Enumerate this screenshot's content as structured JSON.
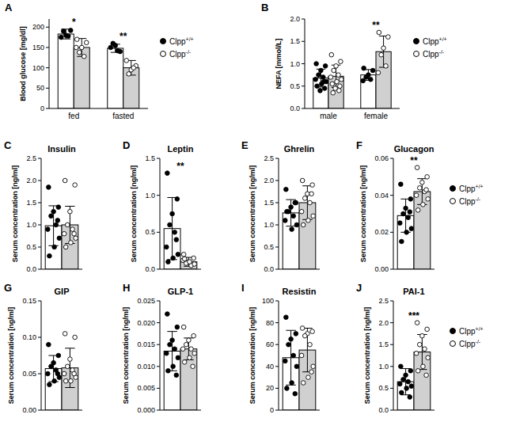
{
  "chart_data": [
    {
      "type": "bar",
      "panel_label": "A",
      "y_label": "Blood glucose [mg/dl]",
      "categories": [
        "fed",
        "fasted"
      ],
      "ylim": [
        0,
        220
      ],
      "yticks": [
        0,
        50,
        100,
        150,
        200
      ],
      "grid": false,
      "legend": "right",
      "series": [
        {
          "name": "Clpp+/+",
          "color": "#ffffff",
          "marker": "filled",
          "values": [
            183,
            148
          ],
          "errors": [
            12,
            10
          ],
          "points": [
            [
              175,
              192,
              180,
              190,
              178
            ],
            [
              150,
              140,
              155,
              160,
              142
            ]
          ]
        },
        {
          "name": "Clpp-/-",
          "color": "#d0d0d0",
          "marker": "open",
          "values": [
            150,
            100
          ],
          "errors": [
            22,
            18
          ],
          "points": [
            [
              170,
              162,
              150,
              138,
              128,
              150
            ],
            [
              118,
              105,
              95,
              85,
              100
            ]
          ]
        }
      ],
      "annotations": [
        {
          "text": "*",
          "category": 0
        },
        {
          "text": "**",
          "category": 1
        }
      ]
    },
    {
      "type": "bar",
      "panel_label": "B",
      "y_label": "NEFA [mmol/L]",
      "categories": [
        "male",
        "female"
      ],
      "ylim": [
        0,
        2.0
      ],
      "yticks": [
        {
          "value": 0,
          "label": "0.0"
        },
        0.5,
        {
          "value": 1,
          "label": "1.0"
        },
        1.5,
        {
          "value": 2,
          "label": "2.0"
        }
      ],
      "grid": false,
      "legend": "right",
      "series": [
        {
          "name": "Clpp+/+",
          "color": "#ffffff",
          "marker": "filled",
          "values": [
            0.68,
            0.75
          ],
          "errors": [
            0.2,
            0.12
          ],
          "points": [
            [
              1.0,
              0.95,
              0.85,
              0.75,
              0.7,
              0.65,
              0.6,
              0.55,
              0.5,
              0.45,
              0.4,
              0.6
            ],
            [
              0.9,
              0.85,
              0.75,
              0.7,
              0.65,
              0.62
            ]
          ]
        },
        {
          "name": "Clpp-/-",
          "color": "#d0d0d0",
          "marker": "open",
          "values": [
            0.72,
            1.27
          ],
          "errors": [
            0.25,
            0.35
          ],
          "points": [
            [
              1.2,
              1.05,
              0.95,
              0.85,
              0.75,
              0.7,
              0.65,
              0.6,
              0.55,
              0.5,
              0.45,
              0.4,
              0.35
            ],
            [
              1.7,
              1.6,
              1.35,
              1.2,
              0.95,
              0.8
            ]
          ]
        }
      ],
      "annotations": [
        {
          "text": "**",
          "category": 1
        }
      ]
    },
    {
      "type": "bar",
      "panel_label": "C",
      "title": "Insulin",
      "y_label": "Serum concentration [ng/ml]",
      "categories": [
        null
      ],
      "ylim": [
        0,
        2.5
      ],
      "yticks": [
        {
          "value": 0,
          "label": "0.0"
        },
        0.5,
        {
          "value": 1,
          "label": "1.0"
        },
        1.5,
        {
          "value": 2,
          "label": "2.0"
        },
        2.5
      ],
      "grid": false,
      "series": [
        {
          "name": "Clpp+/+",
          "color": "#ffffff",
          "marker": "filled",
          "values": [
            0.98
          ],
          "errors": [
            0.45
          ],
          "points": [
            [
              1.85,
              1.4,
              1.3,
              1.2,
              1.0,
              0.9,
              0.7,
              0.5,
              0.3,
              1.1
            ]
          ]
        },
        {
          "name": "Clpp-/-",
          "color": "#d0d0d0",
          "marker": "open",
          "values": [
            1.0
          ],
          "errors": [
            0.42
          ],
          "points": [
            [
              2.0,
              1.9,
              1.3,
              1.0,
              0.9,
              0.8,
              0.7,
              0.6,
              0.5,
              0.8
            ]
          ]
        }
      ]
    },
    {
      "type": "bar",
      "panel_label": "D",
      "title": "Leptin",
      "y_label": "Serum concentration [ng/ml]",
      "categories": [
        null
      ],
      "ylim": [
        0,
        1.5
      ],
      "yticks": [
        {
          "value": 0,
          "label": "0.0"
        },
        0.5,
        {
          "value": 1,
          "label": "1.0"
        },
        1.5
      ],
      "grid": false,
      "series": [
        {
          "name": "Clpp+/+",
          "color": "#ffffff",
          "marker": "filled",
          "values": [
            0.55
          ],
          "errors": [
            0.42
          ],
          "points": [
            [
              1.3,
              0.95,
              0.75,
              0.6,
              0.5,
              0.3,
              0.2,
              0.15,
              0.1,
              0.4
            ]
          ]
        },
        {
          "name": "Clpp-/-",
          "color": "#d0d0d0",
          "marker": "open",
          "values": [
            0.1
          ],
          "errors": [
            0.06
          ],
          "points": [
            [
              0.2,
              0.15,
              0.1,
              0.08,
              0.05,
              0.12,
              0.07,
              0.1,
              0.14
            ]
          ]
        }
      ],
      "annotations": [
        {
          "text": "**",
          "category": 0
        }
      ]
    },
    {
      "type": "bar",
      "panel_label": "E",
      "title": "Ghrelin",
      "y_label": "Serum concentration [ng/ml]",
      "categories": [
        null
      ],
      "ylim": [
        0,
        2.5
      ],
      "yticks": [
        {
          "value": 0,
          "label": "0.0"
        },
        0.5,
        {
          "value": 1,
          "label": "1.0"
        },
        1.5,
        {
          "value": 2,
          "label": "2.0"
        },
        2.5
      ],
      "grid": false,
      "series": [
        {
          "name": "Clpp+/+",
          "color": "#ffffff",
          "marker": "filled",
          "values": [
            1.27
          ],
          "errors": [
            0.3
          ],
          "points": [
            [
              1.8,
              1.5,
              1.4,
              1.3,
              1.2,
              1.1,
              1.0,
              0.9,
              1.3,
              1.5
            ]
          ]
        },
        {
          "name": "Clpp-/-",
          "color": "#d0d0d0",
          "marker": "open",
          "values": [
            1.5
          ],
          "errors": [
            0.38
          ],
          "points": [
            [
              2.0,
              1.9,
              1.7,
              1.6,
              1.5,
              1.3,
              1.2,
              1.1,
              1.0,
              1.7
            ]
          ]
        }
      ]
    },
    {
      "type": "bar",
      "panel_label": "F",
      "title": "Glucagon",
      "y_label": "Serum concentration [ng/ml]",
      "categories": [
        null
      ],
      "ylim": [
        0,
        0.06
      ],
      "yticks": [
        {
          "value": 0,
          "label": "0.00"
        },
        0.02,
        0.04,
        0.06
      ],
      "grid": false,
      "legend": "right",
      "series": [
        {
          "name": "Clpp+/+",
          "color": "#ffffff",
          "marker": "filled",
          "values": [
            0.029
          ],
          "errors": [
            0.009
          ],
          "points": [
            [
              0.046,
              0.038,
              0.033,
              0.03,
              0.028,
              0.025,
              0.022,
              0.02,
              0.015,
              0.031
            ]
          ]
        },
        {
          "name": "Clpp-/-",
          "color": "#d0d0d0",
          "marker": "open",
          "values": [
            0.042
          ],
          "errors": [
            0.007
          ],
          "points": [
            [
              0.055,
              0.05,
              0.047,
              0.044,
              0.042,
              0.04,
              0.038,
              0.035,
              0.032,
              0.043
            ]
          ]
        }
      ],
      "annotations": [
        {
          "text": "**",
          "category": 0
        }
      ]
    },
    {
      "type": "bar",
      "panel_label": "G",
      "title": "GIP",
      "y_label": "Serum concentration [ng/ml]",
      "categories": [
        null
      ],
      "ylim": [
        0,
        0.15
      ],
      "yticks": [
        {
          "value": 0,
          "label": "0.00"
        },
        0.05,
        {
          "value": 0.1,
          "label": "0.10"
        },
        0.15
      ],
      "grid": false,
      "series": [
        {
          "name": "Clpp+/+",
          "color": "#ffffff",
          "marker": "filled",
          "values": [
            0.057
          ],
          "errors": [
            0.018
          ],
          "points": [
            [
              0.09,
              0.075,
              0.065,
              0.06,
              0.055,
              0.05,
              0.045,
              0.04,
              0.035,
              0.05
            ]
          ]
        },
        {
          "name": "Clpp-/-",
          "color": "#d0d0d0",
          "marker": "open",
          "values": [
            0.058
          ],
          "errors": [
            0.027
          ],
          "points": [
            [
              0.105,
              0.1,
              0.07,
              0.06,
              0.055,
              0.05,
              0.045,
              0.04,
              0.04,
              0.05
            ]
          ]
        }
      ]
    },
    {
      "type": "bar",
      "panel_label": "H",
      "title": "GLP-1",
      "y_label": "Serum concentration [ng/ml]",
      "categories": [
        null
      ],
      "ylim": [
        0,
        0.025
      ],
      "yticks": [
        {
          "value": 0,
          "label": "0.000"
        },
        0.005,
        {
          "value": 0.01,
          "label": "0.010"
        },
        0.015,
        {
          "value": 0.02,
          "label": "0.020"
        },
        0.025
      ],
      "grid": false,
      "series": [
        {
          "name": "Clpp+/+",
          "color": "#ffffff",
          "marker": "filled",
          "values": [
            0.0135
          ],
          "errors": [
            0.0045
          ],
          "points": [
            [
              0.022,
              0.019,
              0.016,
              0.015,
              0.014,
              0.013,
              0.012,
              0.01,
              0.009,
              0.008
            ]
          ]
        },
        {
          "name": "Clpp-/-",
          "color": "#d0d0d0",
          "marker": "open",
          "values": [
            0.014
          ],
          "errors": [
            0.0025
          ],
          "points": [
            [
              0.019,
              0.017,
              0.016,
              0.015,
              0.014,
              0.014,
              0.013,
              0.012,
              0.011,
              0.01
            ]
          ]
        }
      ]
    },
    {
      "type": "bar",
      "panel_label": "I",
      "title": "Resistin",
      "y_label": "Serum concentration [ng/ml]",
      "categories": [
        null
      ],
      "ylim": [
        0,
        100
      ],
      "yticks": [
        0,
        20,
        40,
        60,
        80,
        100
      ],
      "grid": false,
      "series": [
        {
          "name": "Clpp+/+",
          "color": "#ffffff",
          "marker": "filled",
          "values": [
            48
          ],
          "errors": [
            25
          ],
          "points": [
            [
              85,
              70,
              65,
              60,
              50,
              45,
              40,
              25,
              20,
              15
            ]
          ]
        },
        {
          "name": "Clpp-/-",
          "color": "#d0d0d0",
          "marker": "open",
          "values": [
            55
          ],
          "errors": [
            20
          ],
          "points": [
            [
              75,
              72,
              70,
              68,
              60,
              50,
              40,
              30,
              25,
              35
            ]
          ]
        }
      ]
    },
    {
      "type": "bar",
      "panel_label": "J",
      "title": "PAI-1",
      "y_label": "Serum concentration [ng/ml]",
      "categories": [
        null
      ],
      "ylim": [
        0,
        2.5
      ],
      "yticks": [
        {
          "value": 0,
          "label": "0.0"
        },
        0.5,
        {
          "value": 1,
          "label": "1.0"
        },
        1.5,
        {
          "value": 2,
          "label": "2.0"
        },
        2.5
      ],
      "grid": false,
      "legend": "right",
      "series": [
        {
          "name": "Clpp+/+",
          "color": "#ffffff",
          "marker": "filled",
          "values": [
            0.65
          ],
          "errors": [
            0.3
          ],
          "points": [
            [
              1.0,
              0.9,
              0.8,
              0.7,
              0.65,
              0.6,
              0.55,
              0.5,
              0.4,
              0.3
            ]
          ]
        },
        {
          "name": "Clpp-/-",
          "color": "#d0d0d0",
          "marker": "open",
          "values": [
            1.33
          ],
          "errors": [
            0.4
          ],
          "points": [
            [
              2.0,
              1.85,
              1.7,
              1.5,
              1.4,
              1.3,
              1.2,
              1.0,
              0.9,
              0.8
            ]
          ]
        }
      ],
      "annotations": [
        {
          "text": "***",
          "category": 0
        }
      ]
    }
  ]
}
